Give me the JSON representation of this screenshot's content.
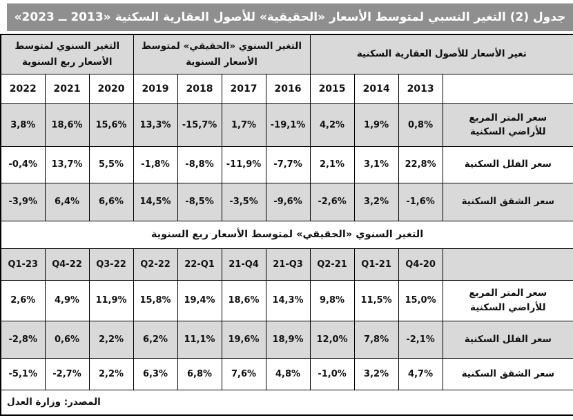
{
  "title": "جدول (2) التغير النسبي لمتوسط الأسعار «الحقيقية» للأصول العقارية السكنية «2013 ــ 2023»",
  "colors": {
    "title_bar": "#8f8f8f",
    "title_text": "#ffffff",
    "row_shade": "#d9d9d9",
    "border": "#000000",
    "text": "#111111"
  },
  "table": {
    "group_headers": [
      {
        "label": "تغير الأسعار للأصول العقارية السكنية",
        "span": 4
      },
      {
        "label": "التغير السنوي «الحقيقي» لمتوسط الأسعار السنوية",
        "span": 4
      },
      {
        "label": "التغير السنوي لمتوسط الأسعار ربع السنوية",
        "span": 3
      }
    ],
    "year_columns": [
      "2013",
      "2014",
      "2015",
      "2016",
      "2017",
      "2018",
      "2019",
      "2020",
      "2021",
      "2022"
    ],
    "annual_rows": [
      {
        "label": "سعر المتر المربع للأراضي السكنية",
        "values": [
          "0,8%",
          "1,9%",
          "4,2%",
          "-19,1%",
          "1,7%",
          "-15,7%",
          "13,3%",
          "15,6%",
          "18,6%",
          "3,8%"
        ]
      },
      {
        "label": "سعر الفلل السكنية",
        "values": [
          "22,8%",
          "3,1%",
          "2,1%",
          "-7,7%",
          "-11,9%",
          "-8,8%",
          "-1,8%",
          "5,5%",
          "13,7%",
          "-0,4%"
        ]
      },
      {
        "label": "سعر الشقق السكنية",
        "values": [
          "-1,6%",
          "3,2%",
          "-2,6%",
          "-9,6%",
          "-3,5%",
          "-8,5%",
          "14,5%",
          "6,6%",
          "6,4%",
          "-3,9%"
        ]
      }
    ],
    "quarterly_header": "التغير السنوي «الحقيقي» لمتوسط الأسعار ربع السنوية",
    "quarter_columns": [
      "Q4-20",
      "Q1-21",
      "Q2-21",
      "21-Q3",
      "21-Q4",
      "22-Q1",
      "Q2-22",
      "Q3-22",
      "Q4-22",
      "Q1-23"
    ],
    "quarterly_rows": [
      {
        "label": "سعر المتر المربع للأراضي السكنية",
        "values": [
          "15,0%",
          "11,5%",
          "9,8%",
          "14,3%",
          "18,6%",
          "19,4%",
          "15,8%",
          "11,9%",
          "4,9%",
          "2,6%"
        ]
      },
      {
        "label": "سعر الفلل السكنية",
        "values": [
          "-2,1%",
          "7,8%",
          "12,0%",
          "18,9%",
          "19,6%",
          "11,1%",
          "6,2%",
          "2,2%",
          "0,6%",
          "-2,8%"
        ]
      },
      {
        "label": "سعر الشقق السكنية",
        "values": [
          "4,7%",
          "3,2%",
          "-1,0%",
          "4,8%",
          "7,6%",
          "6,8%",
          "6,3%",
          "2,2%",
          "-2,7%",
          "-5,1%"
        ]
      }
    ],
    "source": "المصدر: وزارة العدل"
  }
}
